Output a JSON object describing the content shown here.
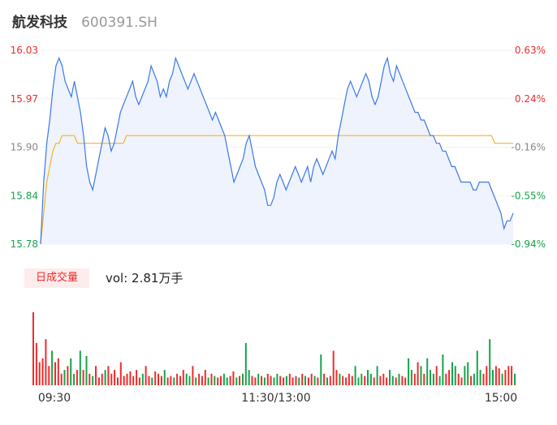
{
  "header": {
    "name": "航发科技",
    "code": "600391.SH"
  },
  "colors": {
    "up": "#f12a2a",
    "down": "#16a34a",
    "neutral": "#888888",
    "price_line": "#3b78e7",
    "avg_line": "#f5b324",
    "area_fill": "#eef3fd"
  },
  "volume_panel": {
    "tag": "日成交量",
    "vol_label": "vol: 2.81万手"
  },
  "chart_data": {
    "type": "line",
    "title": "",
    "ylim": [
      15.78,
      16.03
    ],
    "y_ticks": [
      "16.03",
      "15.97",
      "15.90",
      "15.84",
      "15.78"
    ],
    "y2_ticks": [
      "0.63%",
      "0.24%",
      "-0.16%",
      "-0.55%",
      "-0.94%"
    ],
    "x_ticks": [
      "09:30",
      "11:30/13:00",
      "15:00"
    ],
    "series": [
      {
        "values": [
          15.78,
          15.86,
          15.91,
          15.94,
          15.98,
          16.01,
          16.02,
          16.01,
          15.99,
          15.98,
          15.97,
          15.99,
          15.97,
          15.95,
          15.92,
          15.88,
          15.86,
          15.85,
          15.87,
          15.89,
          15.91,
          15.93,
          15.92,
          15.9,
          15.91,
          15.93,
          15.95,
          15.96,
          15.97,
          15.98,
          15.99,
          15.97,
          15.96,
          15.97,
          15.98,
          15.99,
          16.01,
          16.0,
          15.99,
          15.97,
          15.98,
          15.97,
          15.99,
          16.0,
          16.02,
          16.01,
          16.0,
          15.99,
          15.98,
          15.99,
          16.0,
          15.99,
          15.98,
          15.97,
          15.96,
          15.95,
          15.94,
          15.95,
          15.94,
          15.93,
          15.92,
          15.9,
          15.88,
          15.86,
          15.87,
          15.88,
          15.89,
          15.91,
          15.92,
          15.9,
          15.88,
          15.87,
          15.86,
          15.85,
          15.83,
          15.83,
          15.84,
          15.86,
          15.87,
          15.86,
          15.85,
          15.86,
          15.87,
          15.88,
          15.87,
          15.86,
          15.87,
          15.88,
          15.86,
          15.88,
          15.89,
          15.88,
          15.87,
          15.88,
          15.89,
          15.9,
          15.89,
          15.92,
          15.94,
          15.96,
          15.98,
          15.99,
          15.98,
          15.97,
          15.98,
          15.99,
          16.0,
          15.99,
          15.97,
          15.96,
          15.97,
          15.99,
          16.01,
          16.02,
          16.0,
          15.99,
          16.01,
          16.0,
          15.99,
          15.98,
          15.97,
          15.96,
          15.95,
          15.95,
          15.94,
          15.94,
          15.93,
          15.92,
          15.92,
          15.91,
          15.91,
          15.9,
          15.9,
          15.89,
          15.88,
          15.88,
          15.87,
          15.86,
          15.86,
          15.86,
          15.86,
          15.85,
          15.85,
          15.86,
          15.86,
          15.86,
          15.86,
          15.85,
          15.84,
          15.83,
          15.82,
          15.8,
          15.81,
          15.81,
          15.82
        ]
      },
      {
        "values": [
          15.78,
          15.82,
          15.86,
          15.88,
          15.9,
          15.91,
          15.91,
          15.92,
          15.92,
          15.92,
          15.92,
          15.92,
          15.91,
          15.91,
          15.91,
          15.91,
          15.91,
          15.91,
          15.91,
          15.91,
          15.91,
          15.91,
          15.91,
          15.91,
          15.91,
          15.91,
          15.91,
          15.91,
          15.92,
          15.92,
          15.92,
          15.92,
          15.92,
          15.92,
          15.92,
          15.92,
          15.92,
          15.92,
          15.92,
          15.92,
          15.92,
          15.92,
          15.92,
          15.92,
          15.92,
          15.92,
          15.92,
          15.92,
          15.92,
          15.92,
          15.92,
          15.92,
          15.92,
          15.92,
          15.92,
          15.92,
          15.92,
          15.92,
          15.92,
          15.92,
          15.92,
          15.92,
          15.92,
          15.92,
          15.92,
          15.92,
          15.92,
          15.92,
          15.92,
          15.92,
          15.92,
          15.92,
          15.92,
          15.92,
          15.92,
          15.92,
          15.92,
          15.92,
          15.92,
          15.92,
          15.92,
          15.92,
          15.92,
          15.92,
          15.92,
          15.92,
          15.92,
          15.92,
          15.92,
          15.92,
          15.92,
          15.92,
          15.92,
          15.92,
          15.92,
          15.92,
          15.92,
          15.92,
          15.92,
          15.92,
          15.92,
          15.92,
          15.92,
          15.92,
          15.92,
          15.92,
          15.92,
          15.92,
          15.92,
          15.92,
          15.92,
          15.92,
          15.92,
          15.92,
          15.92,
          15.92,
          15.92,
          15.92,
          15.92,
          15.92,
          15.92,
          15.92,
          15.92,
          15.92,
          15.92,
          15.92,
          15.92,
          15.92,
          15.92,
          15.92,
          15.92,
          15.92,
          15.92,
          15.92,
          15.92,
          15.92,
          15.92,
          15.92,
          15.92,
          15.92,
          15.92,
          15.92,
          15.92,
          15.92,
          15.92,
          15.92,
          15.92,
          15.92,
          15.91,
          15.91,
          15.91,
          15.91,
          15.91,
          15.91,
          15.91
        ]
      }
    ],
    "volume": {
      "values": [
        95,
        55,
        30,
        35,
        60,
        25,
        45,
        30,
        35,
        15,
        20,
        25,
        35,
        15,
        20,
        45,
        20,
        38,
        15,
        12,
        25,
        10,
        15,
        20,
        25,
        15,
        20,
        10,
        30,
        12,
        15,
        18,
        12,
        20,
        10,
        15,
        25,
        12,
        10,
        18,
        15,
        12,
        20,
        10,
        12,
        10,
        15,
        12,
        20,
        15,
        12,
        25,
        10,
        15,
        12,
        20,
        10,
        15,
        12,
        10,
        12,
        15,
        10,
        12,
        18,
        10,
        12,
        15,
        55,
        20,
        12,
        10,
        15,
        12,
        10,
        15,
        12,
        10,
        15,
        12,
        10,
        12,
        15,
        10,
        12,
        10,
        15,
        12,
        10,
        15,
        12,
        10,
        40,
        15,
        10,
        12,
        45,
        20,
        15,
        12,
        10,
        15,
        12,
        25,
        10,
        15,
        12,
        20,
        15,
        10,
        25,
        12,
        15,
        10,
        20,
        12,
        10,
        15,
        12,
        10,
        35,
        20,
        15,
        30,
        25,
        15,
        35,
        20,
        15,
        25,
        12,
        40,
        15,
        20,
        30,
        25,
        15,
        10,
        25,
        30,
        12,
        15,
        45,
        20,
        15,
        25,
        60,
        20,
        25,
        22,
        15,
        20,
        25,
        25,
        15
      ],
      "up": [
        true,
        true,
        true,
        true,
        true,
        true,
        false,
        true,
        true,
        true,
        false,
        true,
        false,
        false,
        true,
        false,
        true,
        false,
        true,
        false,
        true,
        true,
        true,
        false,
        true,
        true,
        true,
        true,
        true,
        true,
        true,
        true,
        true,
        true,
        true,
        false,
        true,
        true,
        false,
        true,
        true,
        true,
        false,
        true,
        true,
        false,
        true,
        true,
        true,
        false,
        false,
        true,
        false,
        true,
        true,
        true,
        false,
        true,
        false,
        true,
        true,
        false,
        false,
        true,
        true,
        false,
        true,
        false,
        false,
        false,
        true,
        true,
        false,
        true,
        false,
        true,
        true,
        false,
        false,
        true,
        true,
        false,
        true,
        true,
        true,
        false,
        true,
        false,
        true,
        true,
        false,
        true,
        false,
        true,
        false,
        true,
        true,
        true,
        false,
        true,
        true,
        true,
        true,
        false,
        false,
        false,
        true,
        false,
        false,
        true,
        false,
        true,
        true,
        true,
        false,
        false,
        true,
        false,
        true,
        true,
        false,
        false,
        true,
        true,
        false,
        true,
        false,
        false,
        false,
        true,
        false,
        false,
        true,
        true,
        false,
        false,
        true,
        true,
        false,
        false,
        true,
        false,
        false,
        false,
        true,
        true,
        false,
        false,
        true,
        true,
        false,
        true,
        true,
        true,
        false
      ]
    }
  }
}
